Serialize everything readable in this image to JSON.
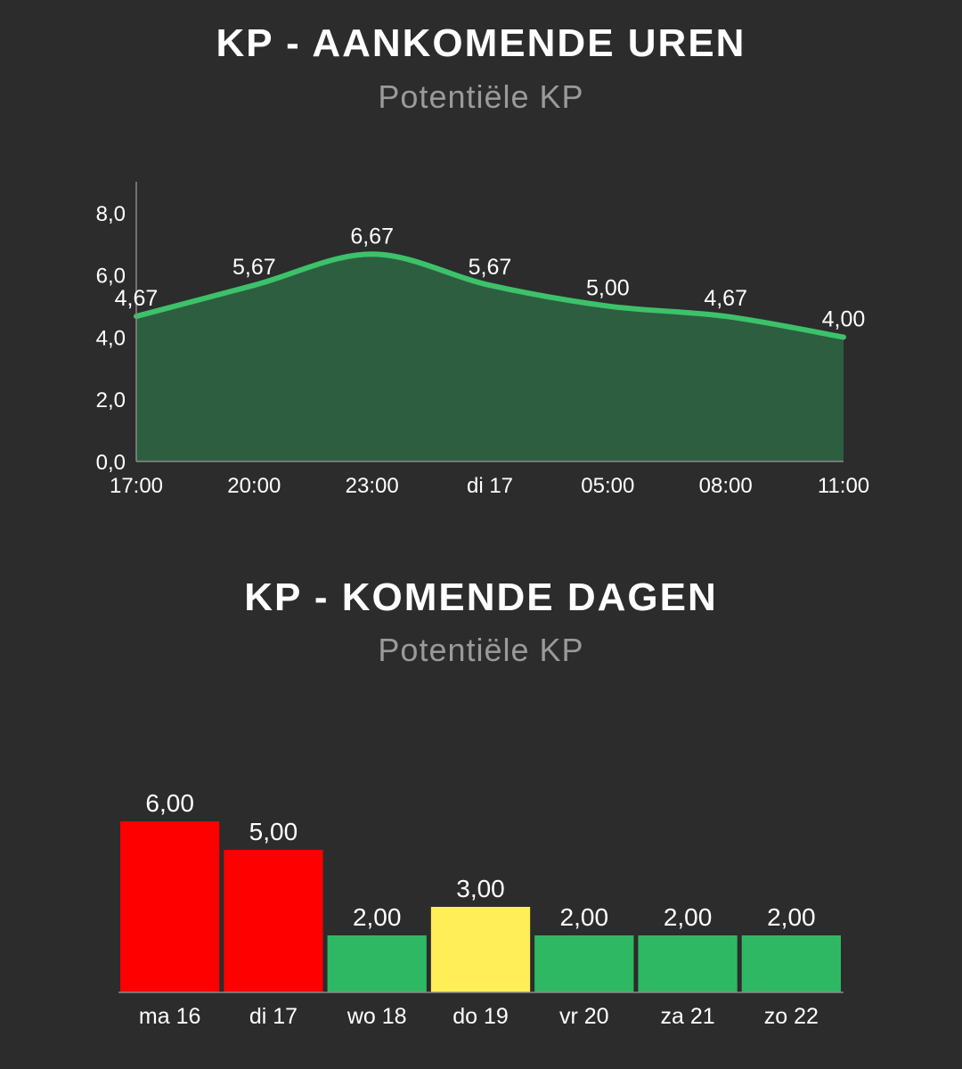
{
  "colors": {
    "background": "#2c2c2c",
    "line": "#3cc26a",
    "area": "#2e5e40",
    "bar_red": "#ff0000",
    "bar_yellow": "#ffee58",
    "bar_green": "#2fb864",
    "text": "#ffffff",
    "subtitle": "#9a9a9a"
  },
  "chart_data": [
    {
      "type": "area",
      "title": "KP - AANKOMENDE UREN",
      "subtitle": "Potentiële KP",
      "categories": [
        "17:00",
        "20:00",
        "23:00",
        "di 17",
        "05:00",
        "08:00",
        "11:00"
      ],
      "values": [
        4.67,
        5.67,
        6.67,
        5.67,
        5.0,
        4.67,
        4.0
      ],
      "value_labels": [
        "4,67",
        "5,67",
        "6,67",
        "5,67",
        "5,00",
        "4,67",
        "4,00"
      ],
      "y_ticks": [
        "0,0",
        "2,0",
        "4,0",
        "6,0",
        "8,0"
      ],
      "y_tick_values": [
        0,
        2,
        4,
        6,
        8
      ],
      "ylim": [
        0,
        9
      ],
      "grid": false,
      "legend": false
    },
    {
      "type": "bar",
      "title": "KP - KOMENDE DAGEN",
      "subtitle": "Potentiële KP",
      "categories": [
        "ma 16",
        "di 17",
        "wo 18",
        "do 19",
        "vr 20",
        "za 21",
        "zo 22"
      ],
      "values": [
        6.0,
        5.0,
        2.0,
        3.0,
        2.0,
        2.0,
        2.0
      ],
      "value_labels": [
        "6,00",
        "5,00",
        "2,00",
        "3,00",
        "2,00",
        "2,00",
        "2,00"
      ],
      "bar_colors": [
        "#ff0000",
        "#ff0000",
        "#2fb864",
        "#ffee58",
        "#2fb864",
        "#2fb864",
        "#2fb864"
      ],
      "ylim": [
        0,
        6
      ],
      "grid": false,
      "legend": false
    }
  ]
}
